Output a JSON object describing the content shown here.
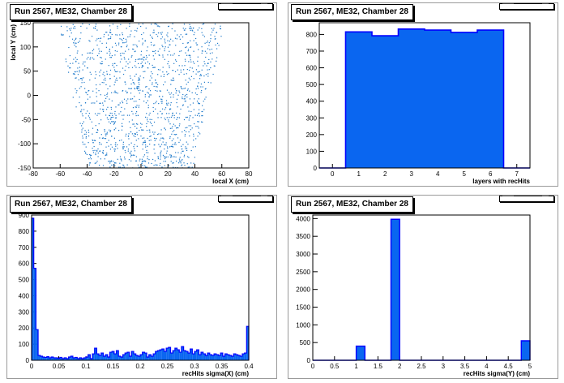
{
  "pads": [
    {
      "title": "Run 2567, ME32, Chamber 28"
    },
    {
      "title": "Run 2567, ME32, Chamber 28"
    },
    {
      "title": "Run 2567, ME32, Chamber 28"
    },
    {
      "title": "Run 2567, ME32, Chamber 28"
    }
  ],
  "colors": {
    "fill": "#0a66f0",
    "line": "#0000ff",
    "marker": "#1a77c9"
  },
  "chart_data": [
    {
      "type": "scatter",
      "title": "Run 2567, ME32, Chamber 28",
      "xlabel": "local X (cm)",
      "ylabel": "local Y (cm)",
      "xlim": [
        -80,
        80
      ],
      "ylim": [
        -150,
        150
      ],
      "xticks": [
        "-80",
        "-60",
        "-40",
        "-20",
        "0",
        "20",
        "40",
        "60",
        "80"
      ],
      "yticks": [
        "-150",
        "-100",
        "-50",
        "0",
        "50",
        "100",
        "150"
      ],
      "xtick_values": [
        -80,
        -60,
        -40,
        -20,
        0,
        20,
        40,
        60,
        80
      ],
      "ytick_values": [
        -150,
        -100,
        -50,
        0,
        50,
        100,
        150
      ],
      "region_top_y": 150,
      "region_top_xmin": -62,
      "region_top_xmax": 62,
      "region_bottom_y": -150,
      "region_bottom_xmin": -40,
      "region_bottom_xmax": 38
    },
    {
      "type": "bar",
      "title": "Run 2567, ME32, Chamber 28",
      "xlabel": "layers with recHits",
      "ylabel": "",
      "xlim": [
        -0.5,
        7.5
      ],
      "ylim": [
        0,
        870
      ],
      "xticks": [
        "0",
        "1",
        "2",
        "3",
        "4",
        "5",
        "6",
        "7"
      ],
      "xtick_values": [
        0,
        1,
        2,
        3,
        4,
        5,
        6,
        7
      ],
      "yticks": [
        "0",
        "100",
        "200",
        "300",
        "400",
        "500",
        "600",
        "700",
        "800"
      ],
      "ytick_values": [
        0,
        100,
        200,
        300,
        400,
        500,
        600,
        700,
        800
      ],
      "categories": [
        1,
        2,
        3,
        4,
        5,
        6
      ],
      "values": [
        815,
        792,
        832,
        826,
        812,
        826
      ]
    },
    {
      "type": "bar",
      "title": "Run 2567, ME32, Chamber 28",
      "xlabel": "recHits sigma(X) (cm)",
      "ylabel": "",
      "xlim": [
        0,
        0.4
      ],
      "ylim": [
        0,
        900
      ],
      "xticks": [
        "0.05",
        "0.1",
        "0.15",
        "0.2",
        "0.25",
        "0.3",
        "0.35",
        "0.4"
      ],
      "xtick_values": [
        0.05,
        0.1,
        0.15,
        0.2,
        0.25,
        0.3,
        0.35,
        0.4
      ],
      "yticks": [
        "0",
        "100",
        "200",
        "300",
        "400",
        "500",
        "600",
        "700",
        "800",
        "900"
      ],
      "ytick_values": [
        0,
        100,
        200,
        300,
        400,
        500,
        600,
        700,
        800,
        900
      ],
      "bin_width": 0.004,
      "values": [
        880,
        570,
        190,
        30,
        25,
        20,
        18,
        22,
        15,
        20,
        15,
        15,
        12,
        18,
        10,
        15,
        10,
        20,
        25,
        15,
        18,
        10,
        15,
        10,
        15,
        20,
        35,
        10,
        40,
        75,
        40,
        30,
        45,
        25,
        35,
        20,
        50,
        55,
        40,
        60,
        25,
        20,
        35,
        45,
        50,
        25,
        55,
        40,
        30,
        25,
        35,
        50,
        45,
        20,
        35,
        25,
        40,
        55,
        60,
        65,
        70,
        55,
        75,
        80,
        45,
        60,
        75,
        65,
        50,
        85,
        60,
        55,
        45,
        70,
        40,
        55,
        65,
        35,
        50,
        40,
        30,
        45,
        35,
        30,
        40,
        35,
        30,
        45,
        25,
        40,
        35,
        30,
        25,
        40,
        35,
        30,
        25,
        40,
        45,
        210
      ]
    },
    {
      "type": "bar",
      "title": "Run 2567, ME32, Chamber 28",
      "xlabel": "recHits sigma(Y) (cm)",
      "ylabel": "",
      "xlim": [
        0,
        5
      ],
      "ylim": [
        0,
        4100
      ],
      "xticks": [
        "0",
        "0.5",
        "1",
        "1.5",
        "2",
        "2.5",
        "3",
        "3.5",
        "4",
        "4.5",
        "5"
      ],
      "xtick_values": [
        0,
        0.5,
        1,
        1.5,
        2,
        2.5,
        3,
        3.5,
        4,
        4.5,
        5
      ],
      "yticks": [
        "0",
        "500",
        "1000",
        "1500",
        "2000",
        "2500",
        "3000",
        "3500",
        "4000"
      ],
      "ytick_values": [
        0,
        500,
        1000,
        1500,
        2000,
        2500,
        3000,
        3500,
        4000
      ],
      "bins": [
        {
          "x0": 1.0,
          "x1": 1.2,
          "value": 400
        },
        {
          "x0": 1.8,
          "x1": 2.0,
          "value": 3980
        },
        {
          "x0": 4.8,
          "x1": 5.0,
          "value": 550
        }
      ]
    }
  ]
}
